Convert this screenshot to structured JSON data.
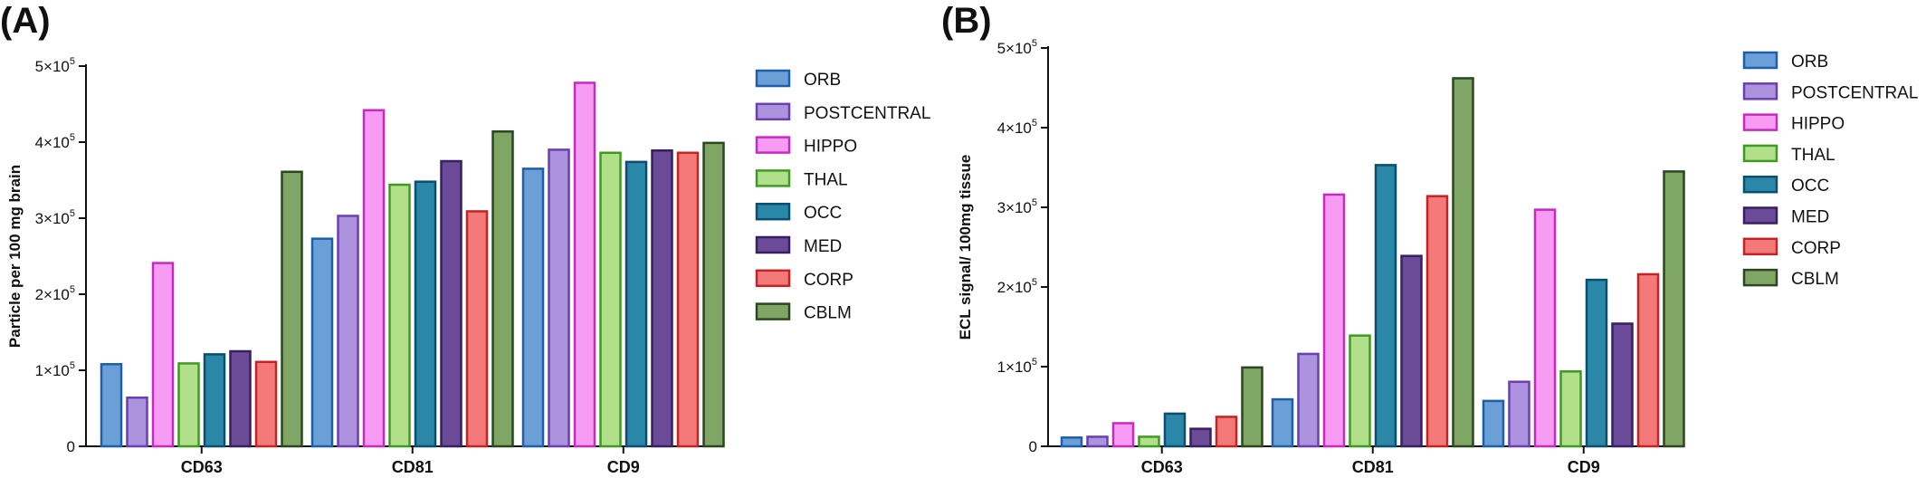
{
  "series_styles": [
    {
      "name": "ORB",
      "fill": "#6a9fd8",
      "stroke": "#1f5fa8"
    },
    {
      "name": "POSTCENTRAL",
      "fill": "#ad92de",
      "stroke": "#6a3fb4"
    },
    {
      "name": "HIPPO",
      "fill": "#f79cf2",
      "stroke": "#c72ac0"
    },
    {
      "name": "THAL",
      "fill": "#b2e08a",
      "stroke": "#3f9a24"
    },
    {
      "name": "OCC",
      "fill": "#2a87a8",
      "stroke": "#0b4f6e"
    },
    {
      "name": "MED",
      "fill": "#6b4a98",
      "stroke": "#372060"
    },
    {
      "name": "CORP",
      "fill": "#f47a7a",
      "stroke": "#c52424"
    },
    {
      "name": "CBLM",
      "fill": "#7fa665",
      "stroke": "#2c4620"
    }
  ],
  "chart_data": [
    {
      "panel": "(A)",
      "type": "bar",
      "ylabel": "Particle per 100 mg brain",
      "categories": [
        "CD63",
        "CD81",
        "CD9"
      ],
      "ylim": [
        0,
        500000
      ],
      "yticks": [
        0,
        100000,
        200000,
        300000,
        400000,
        500000
      ],
      "ytick_labels": [
        {
          "base": "0",
          "exp": ""
        },
        {
          "base": "1×10",
          "exp": "5"
        },
        {
          "base": "2×10",
          "exp": "5"
        },
        {
          "base": "3×10",
          "exp": "5"
        },
        {
          "base": "4×10",
          "exp": "5"
        },
        {
          "base": "5×10",
          "exp": "5"
        }
      ],
      "legend_position": "right",
      "series": [
        {
          "name": "ORB",
          "values": [
            108000,
            273000,
            365000
          ]
        },
        {
          "name": "POSTCENTRAL",
          "values": [
            64000,
            303000,
            390000
          ]
        },
        {
          "name": "HIPPO",
          "values": [
            241000,
            442000,
            478000
          ]
        },
        {
          "name": "THAL",
          "values": [
            109000,
            344000,
            386000
          ]
        },
        {
          "name": "OCC",
          "values": [
            121000,
            348000,
            374000
          ]
        },
        {
          "name": "MED",
          "values": [
            125000,
            375000,
            389000
          ]
        },
        {
          "name": "CORP",
          "values": [
            111000,
            309000,
            386000
          ]
        },
        {
          "name": "CBLM",
          "values": [
            361000,
            414000,
            399000
          ]
        }
      ]
    },
    {
      "panel": "(B)",
      "type": "bar",
      "ylabel": "ECL signal/ 100mg tissue",
      "categories": [
        "CD63",
        "CD81",
        "CD9"
      ],
      "ylim": [
        0,
        500000
      ],
      "yticks": [
        0,
        100000,
        200000,
        300000,
        400000,
        500000
      ],
      "ytick_labels": [
        {
          "base": "0",
          "exp": ""
        },
        {
          "base": "1×10",
          "exp": "5"
        },
        {
          "base": "2×10",
          "exp": "5"
        },
        {
          "base": "3×10",
          "exp": "5"
        },
        {
          "base": "4×10",
          "exp": "5"
        },
        {
          "base": "5×10",
          "exp": "5"
        }
      ],
      "legend_position": "right",
      "series": [
        {
          "name": "ORB",
          "values": [
            11000,
            59000,
            57000
          ]
        },
        {
          "name": "POSTCENTRAL",
          "values": [
            12000,
            116000,
            81000
          ]
        },
        {
          "name": "HIPPO",
          "values": [
            29000,
            316000,
            297000
          ]
        },
        {
          "name": "THAL",
          "values": [
            12000,
            139000,
            94000
          ]
        },
        {
          "name": "OCC",
          "values": [
            41000,
            353000,
            209000
          ]
        },
        {
          "name": "MED",
          "values": [
            22000,
            239000,
            154000
          ]
        },
        {
          "name": "CORP",
          "values": [
            37000,
            314000,
            216000
          ]
        },
        {
          "name": "CBLM",
          "values": [
            99000,
            462000,
            345000
          ]
        }
      ]
    }
  ]
}
